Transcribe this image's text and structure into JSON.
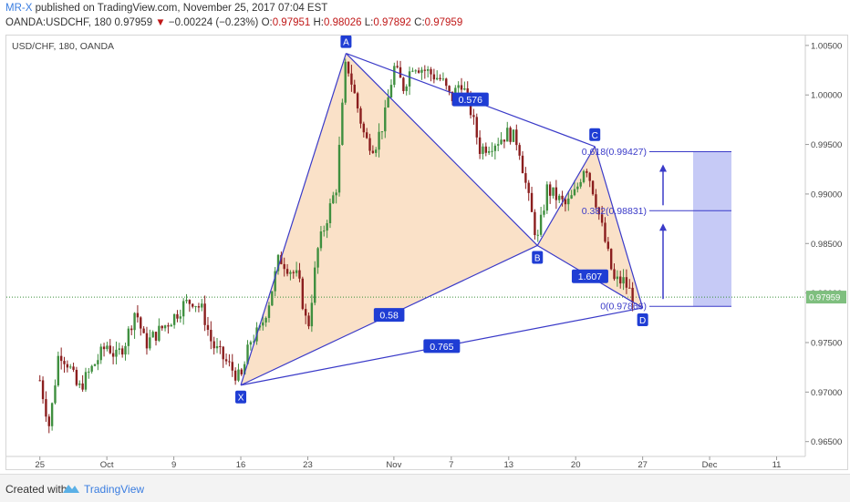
{
  "header": {
    "author": "MR-X",
    "published": "published on TradingView.com, November 25, 2017 07:04 EST",
    "symbol": "OANDA:USDCHF, 180",
    "last": "0.97959",
    "change": "−0.00224 (−0.23%)",
    "o_label": "O:",
    "o_value": "0.97951",
    "h_label": "H:",
    "h_value": "0.98026",
    "l_label": "L:",
    "l_value": "0.97892",
    "c_label": "C:",
    "c_value": "0.97959"
  },
  "footer": {
    "created": "Created with",
    "brand": "TradingView"
  },
  "colors": {
    "up": "#3f8f3f",
    "down": "#8b1e1e",
    "pattern_line": "#3a3ac8",
    "pattern_fill": "#f5c99b",
    "box_fill": "#aeb3f2",
    "price_tag": "#7fbf7f",
    "label_bg": "#1f3dd4"
  },
  "chart_data": {
    "type": "candlestick",
    "title": "USD/CHF, 180, OANDA",
    "xlabel": "",
    "ylabel": "",
    "ylim": [
      0.9635,
      1.006
    ],
    "x_tick_labels": [
      "25",
      "Oct",
      "9",
      "16",
      "23",
      "Nov",
      "7",
      "13",
      "20",
      "27",
      "Dec",
      "11"
    ],
    "y_tick_labels": [
      "1.00500",
      "1.00000",
      "0.99500",
      "0.99000",
      "0.98500",
      "0.98000",
      "0.97500",
      "0.97000",
      "0.96500"
    ],
    "y_ticks": [
      1.005,
      1.0,
      0.995,
      0.99,
      0.985,
      0.98,
      0.975,
      0.97,
      0.965
    ],
    "last_price": "0.97959",
    "last_price_value": 0.97959,
    "pattern_points": [
      {
        "label": "X",
        "date": "2017-10-16",
        "price": 0.9707
      },
      {
        "label": "A",
        "date": "2017-10-27",
        "price": 1.0042
      },
      {
        "label": "B",
        "date": "2017-11-16",
        "price": 0.9848
      },
      {
        "label": "C",
        "date": "2017-11-22",
        "price": 0.9948
      },
      {
        "label": "D",
        "date": "2017-11-27",
        "price": 0.9785
      }
    ],
    "ratios": [
      {
        "label": "0.58",
        "from": "X",
        "to": "B"
      },
      {
        "label": "0.765",
        "from": "X",
        "to": "D"
      },
      {
        "label": "0.576",
        "from": "A",
        "to": "C"
      },
      {
        "label": "1.607",
        "from": "B",
        "to": "D"
      }
    ],
    "fib_levels": [
      {
        "label": "0.618(0.99427)",
        "price": 0.99427
      },
      {
        "label": "0.382(0.98831)",
        "price": 0.98831
      },
      {
        "label": "0(0.97866)",
        "price": 0.97866
      }
    ],
    "path": [
      [
        "2017-09-25",
        0.9712
      ],
      [
        "2017-09-26",
        0.9665
      ],
      [
        "2017-09-27",
        0.9742
      ],
      [
        "2017-09-28",
        0.9728
      ],
      [
        "2017-09-29",
        0.9702
      ],
      [
        "2017-10-02",
        0.9748
      ],
      [
        "2017-10-03",
        0.9735
      ],
      [
        "2017-10-04",
        0.9752
      ],
      [
        "2017-10-05",
        0.9784
      ],
      [
        "2017-10-06",
        0.9748
      ],
      [
        "2017-10-09",
        0.9776
      ],
      [
        "2017-10-10",
        0.9788
      ],
      [
        "2017-10-11",
        0.9793
      ],
      [
        "2017-10-12",
        0.9782
      ],
      [
        "2017-10-13",
        0.9748
      ],
      [
        "2017-10-16",
        0.9712
      ],
      [
        "2017-10-17",
        0.9752
      ],
      [
        "2017-10-18",
        0.9762
      ],
      [
        "2017-10-19",
        0.9793
      ],
      [
        "2017-10-20",
        0.9836
      ],
      [
        "2017-10-22",
        0.9815
      ],
      [
        "2017-10-23",
        0.9762
      ],
      [
        "2017-10-24",
        0.9842
      ],
      [
        "2017-10-25",
        0.9876
      ],
      [
        "2017-10-26",
        0.9908
      ],
      [
        "2017-10-27",
        1.0036
      ],
      [
        "2017-10-29",
        0.9955
      ],
      [
        "2017-10-30",
        0.9948
      ],
      [
        "2017-10-31",
        0.9975
      ],
      [
        "2017-11-01",
        1.0028
      ],
      [
        "2017-11-02",
        1.0008
      ],
      [
        "2017-11-03",
        1.0032
      ],
      [
        "2017-11-06",
        1.0015
      ],
      [
        "2017-11-07",
        0.9995
      ],
      [
        "2017-11-08",
        1.0015
      ],
      [
        "2017-11-09",
        0.9985
      ],
      [
        "2017-11-10",
        0.9945
      ],
      [
        "2017-11-12",
        0.9955
      ],
      [
        "2017-11-13",
        0.9962
      ],
      [
        "2017-11-14",
        0.9952
      ],
      [
        "2017-11-15",
        0.9898
      ],
      [
        "2017-11-16",
        0.9852
      ],
      [
        "2017-11-17",
        0.9905
      ],
      [
        "2017-11-19",
        0.9888
      ],
      [
        "2017-11-20",
        0.9902
      ],
      [
        "2017-11-21",
        0.9932
      ],
      [
        "2017-11-22",
        0.9898
      ],
      [
        "2017-11-23",
        0.9855
      ],
      [
        "2017-11-24",
        0.9812
      ],
      [
        "2017-11-25",
        0.9812
      ],
      [
        "2017-11-26",
        0.9796
      ]
    ]
  }
}
